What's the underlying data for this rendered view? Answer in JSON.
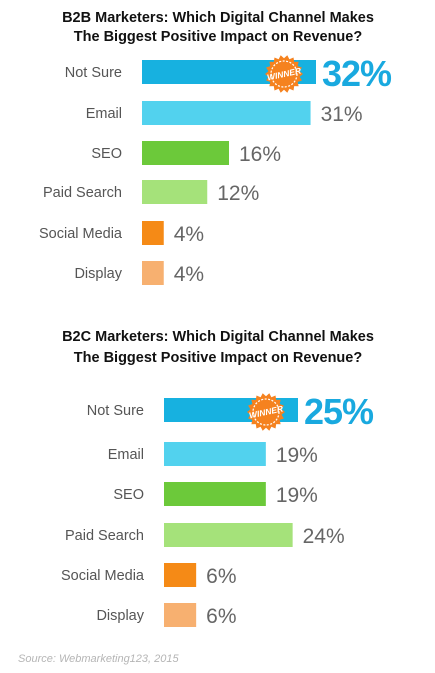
{
  "chart_data": [
    {
      "type": "bar",
      "orientation": "horizontal",
      "title": "B2B Marketers: Which Digital Channel Makes The Biggest Positive Impact on Revenue?",
      "title_lines": [
        "B2B Marketers: Which Digital Channel Makes",
        "The Biggest Positive Impact on Revenue?"
      ],
      "categories": [
        "Not Sure",
        "Email",
        "SEO",
        "Paid Search",
        "Social Media",
        "Display"
      ],
      "values": [
        32,
        31,
        16,
        12,
        4,
        4
      ],
      "value_labels": [
        "32%",
        "31%",
        "16%",
        "12%",
        "4%",
        "4%"
      ],
      "bar_colors": [
        "#17b1e0",
        "#52d2ee",
        "#6cc93a",
        "#a5e27a",
        "#f58a16",
        "#f7b070"
      ],
      "highlight_index": 0,
      "badge": "WINNER",
      "xlim": [
        0,
        32
      ],
      "grid": false,
      "legend": "none"
    },
    {
      "type": "bar",
      "orientation": "horizontal",
      "title": "B2C Marketers: Which Digital Channel Makes The Biggest Positive Impact on Revenue?",
      "title_lines": [
        "B2C Marketers: Which Digital Channel Makes",
        "The Biggest Positive Impact on Revenue?"
      ],
      "categories": [
        "Not Sure",
        "Email",
        "SEO",
        "Paid Search",
        "Social Media",
        "Display"
      ],
      "values": [
        25,
        19,
        19,
        24,
        6,
        6
      ],
      "value_labels": [
        "25%",
        "19%",
        "19%",
        "24%",
        "6%",
        "6%"
      ],
      "bar_colors": [
        "#17b1e0",
        "#52d2ee",
        "#6cc93a",
        "#a5e27a",
        "#f58a16",
        "#f7b070"
      ],
      "highlight_index": 0,
      "badge": "WINNER",
      "xlim": [
        0,
        25
      ],
      "grid": false,
      "legend": "none"
    }
  ],
  "source": "Source: Webmarketing123, 2015",
  "colors": {
    "title": "#111111",
    "category_label": "#555555",
    "value_label": "#666666",
    "highlight_value": "#19a9df",
    "badge_fill": "#f5821f",
    "badge_text": "#ffffff"
  }
}
